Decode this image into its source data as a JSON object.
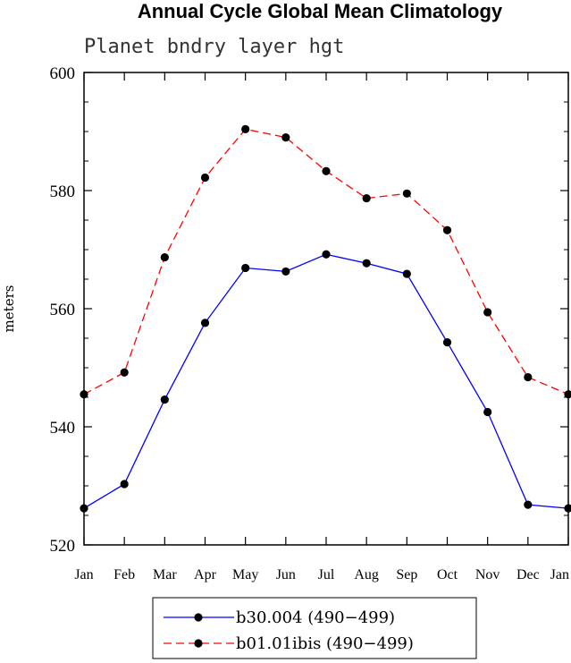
{
  "chart_data": {
    "type": "line",
    "title": "Annual Cycle Global Mean Climatology",
    "subtitle": "Planet bndry layer hgt",
    "ylabel": "meters",
    "xlabel": "",
    "categories": [
      "Jan",
      "Feb",
      "Mar",
      "Apr",
      "May",
      "Jun",
      "Jul",
      "Aug",
      "Sep",
      "Oct",
      "Nov",
      "Dec",
      "Jan"
    ],
    "ylim": [
      520,
      600
    ],
    "yticks": [
      520,
      540,
      560,
      580,
      600
    ],
    "series": [
      {
        "name": "b30.004 (490−499)",
        "color": "#0000ff",
        "dash": "solid",
        "values": [
          526.2,
          530.3,
          544.6,
          557.6,
          566.9,
          566.3,
          569.2,
          567.7,
          565.9,
          554.3,
          542.5,
          526.8,
          526.2
        ]
      },
      {
        "name": "b01.01ibis (490−499)",
        "color": "#ff0000",
        "dash": "dashed",
        "values": [
          545.5,
          549.2,
          568.7,
          582.2,
          590.4,
          589.0,
          583.3,
          578.7,
          579.5,
          573.3,
          559.4,
          548.4,
          545.5
        ]
      }
    ],
    "legend": "bottom-center",
    "grid": false
  }
}
